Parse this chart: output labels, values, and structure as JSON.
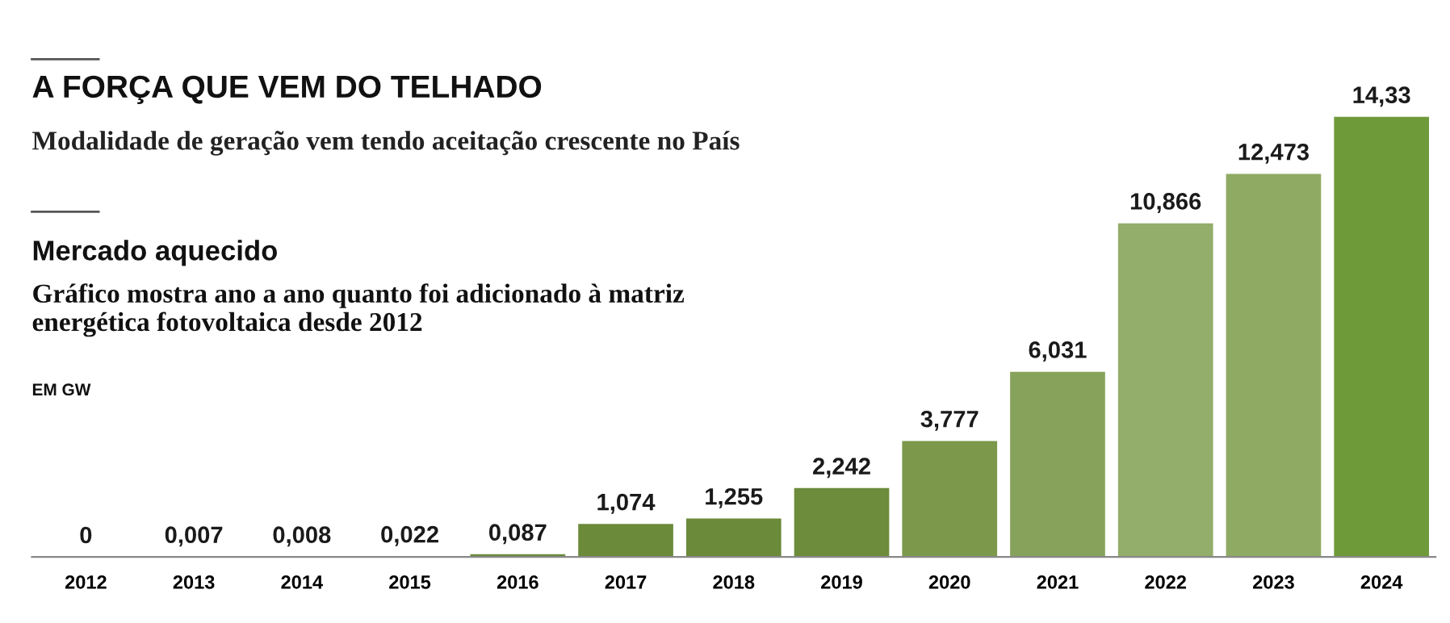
{
  "chart_data": {
    "type": "bar",
    "title": "A FORÇA QUE VEM DO TELHADO",
    "subtitle": "Modalidade de geração vem tendo aceitação crescente no País",
    "annotations": [
      "Mercado aquecido",
      "Gráfico mostra ano a ano quanto foi adicionado à matriz\nenergética fotovoltaica desde 2012",
      "EM GW"
    ],
    "categories": [
      "2012",
      "2013",
      "2014",
      "2015",
      "2016",
      "2017",
      "2018",
      "2019",
      "2020",
      "2021",
      "2022",
      "2023",
      "2024"
    ],
    "values": [
      0,
      0.007,
      0.008,
      0.022,
      0.087,
      1.074,
      1.255,
      2.242,
      3.777,
      6.031,
      10.866,
      12.473,
      14.33
    ],
    "value_labels": [
      "0",
      "0,007",
      "0,008",
      "0,022",
      "0,087",
      "1,074",
      "1,255",
      "2,242",
      "3,777",
      "6,031",
      "10,866",
      "12,473",
      "14,33"
    ],
    "colors": [
      "#6b8a3a",
      "#6b8a3a",
      "#6b8a3a",
      "#6b8a3a",
      "#6b8a3a",
      "#6b8a3a",
      "#6b8a3a",
      "#6d8c3c",
      "#7b984b",
      "#87a35b",
      "#93ad6a",
      "#8fab63",
      "#6f9a3a"
    ],
    "grid": false,
    "legend": false
  }
}
